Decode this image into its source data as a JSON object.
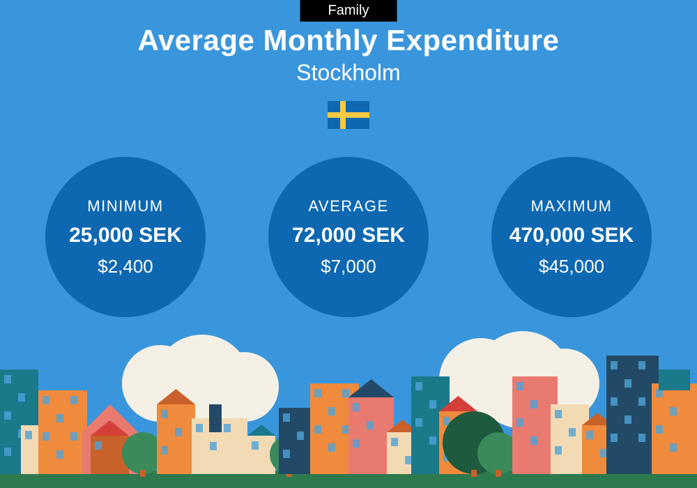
{
  "colors": {
    "background": "#3a96dc",
    "tag_bg": "#000000",
    "tag_text": "#ffffff",
    "title": "#ffffff",
    "subtitle": "#ffffff",
    "circle_bg": "#0d68b1",
    "circle_text": "#ffffff",
    "flag_body": "#0d68b1",
    "flag_cross": "#f6c945",
    "ground": "#2d7a4f",
    "sky_cloud": "#f5f0e6",
    "building_orange": "#f08a3c",
    "building_dark_orange": "#c8622a",
    "building_salmon": "#e87a6f",
    "building_cream": "#f2dbb4",
    "building_teal": "#1a7a8a",
    "building_navy": "#224a66",
    "building_red": "#d43f3a",
    "tree_green": "#3a8a5c",
    "tree_dark": "#1e5a3d",
    "window": "#4da2d9"
  },
  "tag": "Family",
  "title": "Average Monthly Expenditure",
  "subtitle": "Stockholm",
  "typography": {
    "title_size": 42,
    "title_weight": 800,
    "subtitle_size": 32,
    "stat_label_size": 22,
    "stat_value_size": 30,
    "stat_usd_size": 26
  },
  "layout": {
    "circle_diameter": 230,
    "circle_gap": 90,
    "flag_w": 60,
    "flag_h": 40
  },
  "stats": [
    {
      "label": "MINIMUM",
      "value": "25,000 SEK",
      "usd": "$2,400"
    },
    {
      "label": "AVERAGE",
      "value": "72,000 SEK",
      "usd": "$7,000"
    },
    {
      "label": "MAXIMUM",
      "value": "470,000 SEK",
      "usd": "$45,000"
    }
  ]
}
